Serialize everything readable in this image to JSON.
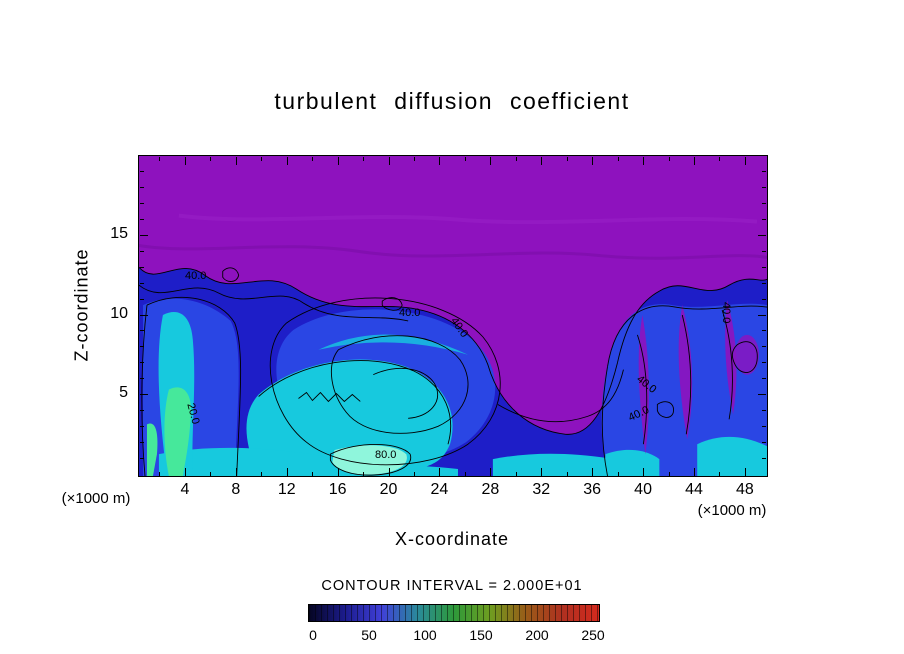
{
  "page": {
    "background": "#ffffff"
  },
  "chart_data": {
    "type": "heatmap",
    "subtype": "filled-contour-plot",
    "title": "turbulent diffusion coefficient",
    "xlabel": "X-coordinate",
    "ylabel": "Z-coordinate",
    "x_axis": {
      "ticks": [
        4,
        8,
        12,
        16,
        20,
        24,
        28,
        32,
        36,
        40,
        44,
        48
      ],
      "range": [
        0,
        50
      ],
      "unit_label": "(×1000 m)"
    },
    "y_axis": {
      "ticks": [
        5,
        10,
        15
      ],
      "range": [
        0,
        20
      ],
      "unit_label": "(×1000 m)"
    },
    "contour_interval_text": "CONTOUR INTERVAL = 2.000E+01",
    "contour_interval": 20,
    "contour_labels": [
      "40.0",
      "40.0",
      "40.0",
      "40.0",
      "40.0",
      "80.0",
      "20.0",
      "40.0"
    ],
    "colorbar": {
      "min": 0,
      "max": 250,
      "ticks": [
        0,
        50,
        100,
        150,
        200,
        250
      ],
      "stops": [
        "#050522",
        "#1c1c8e",
        "#4040d8",
        "#2a8a9a",
        "#2e9a3a",
        "#6f9d20",
        "#9a5a18",
        "#b03020",
        "#d42a1e"
      ]
    },
    "field_colors": {
      "purple": "#8E12BE",
      "darkblue": "#1E1EC8",
      "blue": "#2A46E4",
      "cyan": "#17C9DE",
      "ltcyan": "#8FF6DC",
      "green": "#46E89B",
      "line": "#000000"
    }
  }
}
